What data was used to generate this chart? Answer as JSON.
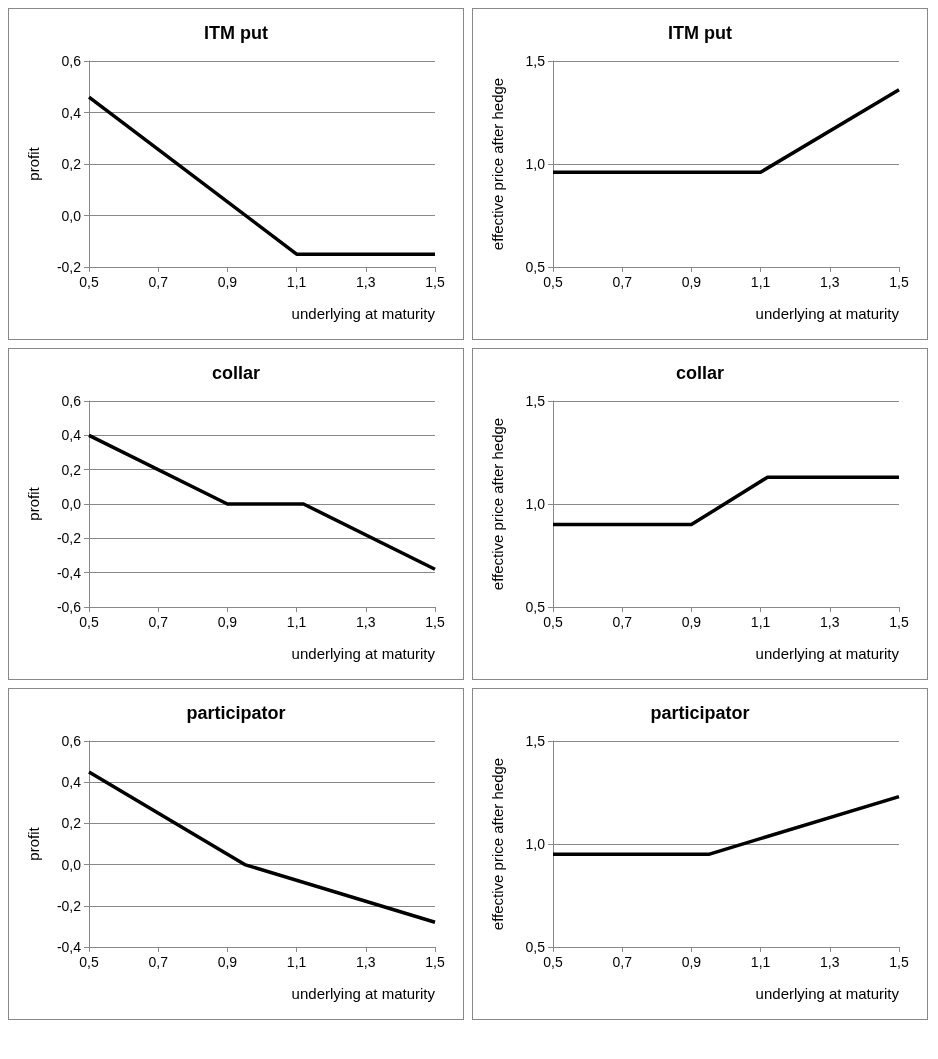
{
  "chart_data": [
    {
      "type": "line",
      "title": "ITM put",
      "xlabel": "underlying at maturity",
      "ylabel": "profit",
      "xlim": [
        0.5,
        1.5
      ],
      "xticks": [
        {
          "value": 0.5,
          "label": "0,5"
        },
        {
          "value": 0.7,
          "label": "0,7"
        },
        {
          "value": 0.9,
          "label": "0,9"
        },
        {
          "value": 1.1,
          "label": "1,1"
        },
        {
          "value": 1.3,
          "label": "1,3"
        },
        {
          "value": 1.5,
          "label": "1,5"
        }
      ],
      "ylim": [
        -0.2,
        0.6
      ],
      "yticks": [
        {
          "value": -0.2,
          "label": "-0,2"
        },
        {
          "value": 0,
          "label": "0,0"
        },
        {
          "value": 0.2,
          "label": "0,2"
        },
        {
          "value": 0.4,
          "label": "0,4"
        },
        {
          "value": 0.6,
          "label": "0,6"
        }
      ],
      "grid": "y",
      "series": [
        {
          "color": "#000000",
          "x": [
            0.5,
            1.1,
            1.5
          ],
          "values": [
            0.46,
            -0.15,
            -0.15
          ]
        }
      ]
    },
    {
      "type": "line",
      "title": "ITM put",
      "xlabel": "underlying at maturity",
      "ylabel": "effective price after hedge",
      "xlim": [
        0.5,
        1.5
      ],
      "xticks": [
        {
          "value": 0.5,
          "label": "0,5"
        },
        {
          "value": 0.7,
          "label": "0,7"
        },
        {
          "value": 0.9,
          "label": "0,9"
        },
        {
          "value": 1.1,
          "label": "1,1"
        },
        {
          "value": 1.3,
          "label": "1,3"
        },
        {
          "value": 1.5,
          "label": "1,5"
        }
      ],
      "ylim": [
        0.5,
        1.5
      ],
      "yticks": [
        {
          "value": 0.5,
          "label": "0,5"
        },
        {
          "value": 1,
          "label": "1,0"
        },
        {
          "value": 1.5,
          "label": "1,5"
        }
      ],
      "grid": "y",
      "series": [
        {
          "color": "#000000",
          "x": [
            0.5,
            1.1,
            1.5
          ],
          "values": [
            0.96,
            0.96,
            1.36
          ]
        }
      ]
    },
    {
      "type": "line",
      "title": "collar",
      "xlabel": "underlying at maturity",
      "ylabel": "profit",
      "xlim": [
        0.5,
        1.5
      ],
      "xticks": [
        {
          "value": 0.5,
          "label": "0,5"
        },
        {
          "value": 0.7,
          "label": "0,7"
        },
        {
          "value": 0.9,
          "label": "0,9"
        },
        {
          "value": 1.1,
          "label": "1,1"
        },
        {
          "value": 1.3,
          "label": "1,3"
        },
        {
          "value": 1.5,
          "label": "1,5"
        }
      ],
      "ylim": [
        -0.6,
        0.6
      ],
      "yticks": [
        {
          "value": -0.6,
          "label": "-0,6"
        },
        {
          "value": -0.4,
          "label": "-0,4"
        },
        {
          "value": -0.2,
          "label": "-0,2"
        },
        {
          "value": 0,
          "label": "0,0"
        },
        {
          "value": 0.2,
          "label": "0,2"
        },
        {
          "value": 0.4,
          "label": "0,4"
        },
        {
          "value": 0.6,
          "label": "0,6"
        }
      ],
      "grid": "y",
      "series": [
        {
          "color": "#000000",
          "x": [
            0.5,
            0.9,
            1.12,
            1.5
          ],
          "values": [
            0.4,
            0,
            0,
            -0.38
          ]
        }
      ]
    },
    {
      "type": "line",
      "title": "collar",
      "xlabel": "underlying at maturity",
      "ylabel": "effective price after hedge",
      "xlim": [
        0.5,
        1.5
      ],
      "xticks": [
        {
          "value": 0.5,
          "label": "0,5"
        },
        {
          "value": 0.7,
          "label": "0,7"
        },
        {
          "value": 0.9,
          "label": "0,9"
        },
        {
          "value": 1.1,
          "label": "1,1"
        },
        {
          "value": 1.3,
          "label": "1,3"
        },
        {
          "value": 1.5,
          "label": "1,5"
        }
      ],
      "ylim": [
        0.5,
        1.5
      ],
      "yticks": [
        {
          "value": 0.5,
          "label": "0,5"
        },
        {
          "value": 1,
          "label": "1,0"
        },
        {
          "value": 1.5,
          "label": "1,5"
        }
      ],
      "grid": "y",
      "series": [
        {
          "color": "#000000",
          "x": [
            0.5,
            0.9,
            1.12,
            1.5
          ],
          "values": [
            0.9,
            0.9,
            1.13,
            1.13
          ]
        }
      ]
    },
    {
      "type": "line",
      "title": "participator",
      "xlabel": "underlying at maturity",
      "ylabel": "profit",
      "xlim": [
        0.5,
        1.5
      ],
      "xticks": [
        {
          "value": 0.5,
          "label": "0,5"
        },
        {
          "value": 0.7,
          "label": "0,7"
        },
        {
          "value": 0.9,
          "label": "0,9"
        },
        {
          "value": 1.1,
          "label": "1,1"
        },
        {
          "value": 1.3,
          "label": "1,3"
        },
        {
          "value": 1.5,
          "label": "1,5"
        }
      ],
      "ylim": [
        -0.4,
        0.6
      ],
      "yticks": [
        {
          "value": -0.4,
          "label": "-0,4"
        },
        {
          "value": -0.2,
          "label": "-0,2"
        },
        {
          "value": 0,
          "label": "0,0"
        },
        {
          "value": 0.2,
          "label": "0,2"
        },
        {
          "value": 0.4,
          "label": "0,4"
        },
        {
          "value": 0.6,
          "label": "0,6"
        }
      ],
      "grid": "y",
      "series": [
        {
          "color": "#000000",
          "x": [
            0.5,
            0.95,
            1.5
          ],
          "values": [
            0.45,
            0,
            -0.28
          ]
        }
      ]
    },
    {
      "type": "line",
      "title": "participator",
      "xlabel": "underlying at maturity",
      "ylabel": "effective price after hedge",
      "xlim": [
        0.5,
        1.5
      ],
      "xticks": [
        {
          "value": 0.5,
          "label": "0,5"
        },
        {
          "value": 0.7,
          "label": "0,7"
        },
        {
          "value": 0.9,
          "label": "0,9"
        },
        {
          "value": 1.1,
          "label": "1,1"
        },
        {
          "value": 1.3,
          "label": "1,3"
        },
        {
          "value": 1.5,
          "label": "1,5"
        }
      ],
      "ylim": [
        0.5,
        1.5
      ],
      "yticks": [
        {
          "value": 0.5,
          "label": "0,5"
        },
        {
          "value": 1,
          "label": "1,0"
        },
        {
          "value": 1.5,
          "label": "1,5"
        }
      ],
      "grid": "y",
      "series": [
        {
          "color": "#000000",
          "x": [
            0.5,
            0.95,
            1.5
          ],
          "values": [
            0.95,
            0.95,
            1.23
          ]
        }
      ]
    }
  ]
}
